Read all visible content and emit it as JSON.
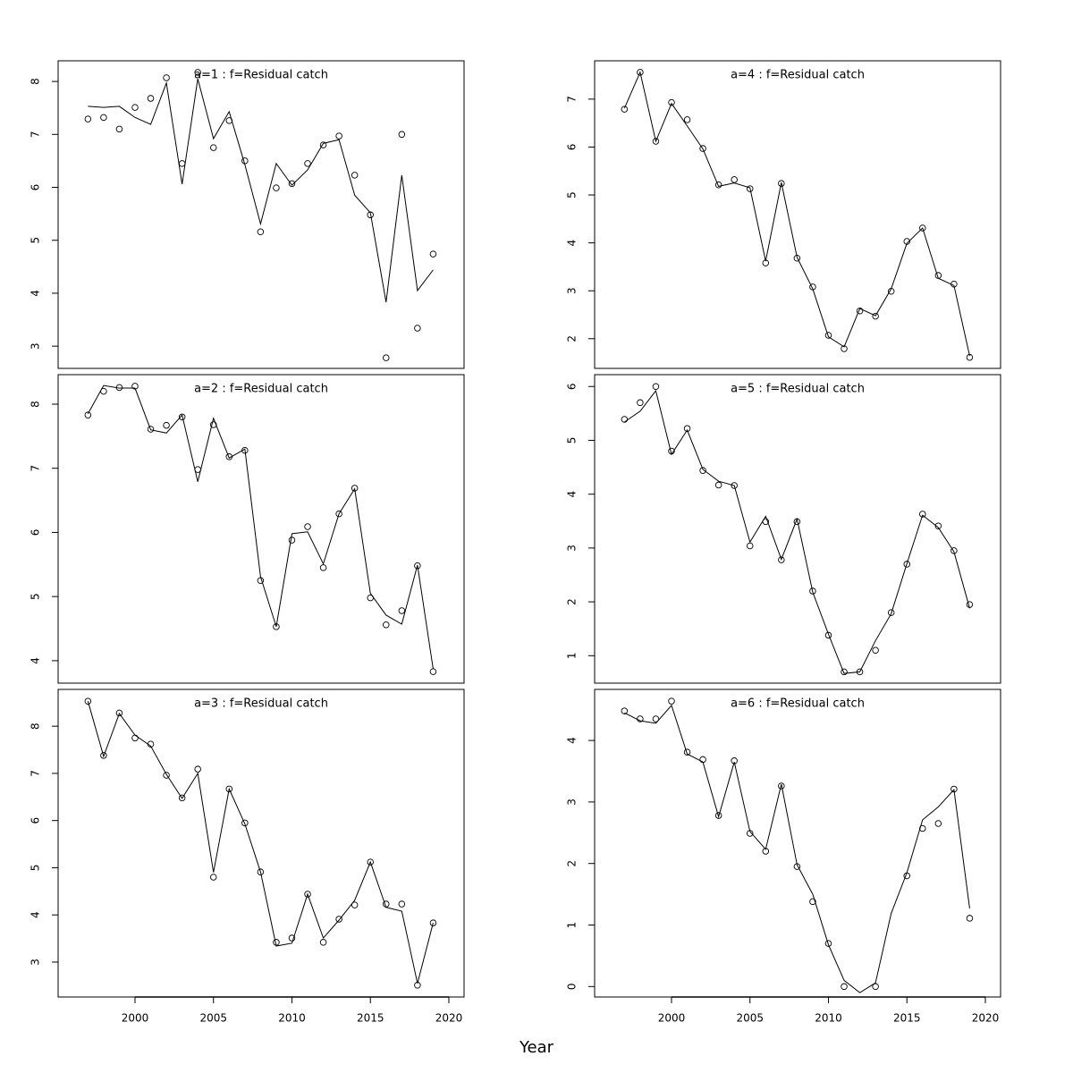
{
  "xlabel": "Year",
  "chart_data": [
    {
      "type": "line",
      "title": "a=1  :  f=Residual catch",
      "title_color": "#808080",
      "x": [
        1997,
        1998,
        1999,
        2000,
        2001,
        2002,
        2003,
        2004,
        2005,
        2006,
        2007,
        2008,
        2009,
        2010,
        2011,
        2012,
        2013,
        2014,
        2015,
        2016,
        2017,
        2018,
        2019
      ],
      "series": [
        {
          "style": "points",
          "color": "#000000",
          "values": [
            7.29,
            7.32,
            7.1,
            7.51,
            7.68,
            8.07,
            6.45,
            8.17,
            6.75,
            7.26,
            6.5,
            5.16,
            5.99,
            6.07,
            6.45,
            6.8,
            6.97,
            6.23,
            5.48,
            2.78,
            7.0,
            3.34,
            4.74
          ]
        },
        {
          "style": "line",
          "color": "#000000",
          "values": [
            7.53,
            7.51,
            7.53,
            7.32,
            7.19,
            7.97,
            6.06,
            8.05,
            6.92,
            7.43,
            6.43,
            5.31,
            6.45,
            6.04,
            6.33,
            6.83,
            6.9,
            5.85,
            5.52,
            3.83,
            6.23,
            4.05,
            4.44
          ]
        }
      ],
      "xlim": [
        1995.1,
        2020.97
      ],
      "ylim": [
        2.58,
        8.39
      ],
      "yticks": [
        3,
        4,
        5,
        6,
        7,
        8
      ]
    },
    {
      "type": "line",
      "title": "a=2  :  f=Residual catch",
      "title_color": "#808080",
      "x": [
        1997,
        1998,
        1999,
        2000,
        2001,
        2002,
        2003,
        2004,
        2005,
        2006,
        2007,
        2008,
        2009,
        2010,
        2011,
        2012,
        2013,
        2014,
        2015,
        2016,
        2017,
        2018,
        2019
      ],
      "series": [
        {
          "style": "points",
          "color": "#000000",
          "values": [
            7.83,
            8.2,
            8.26,
            8.28,
            7.61,
            7.67,
            7.8,
            6.98,
            7.68,
            7.18,
            7.28,
            5.25,
            4.53,
            5.88,
            6.09,
            5.45,
            6.29,
            6.69,
            4.98,
            4.56,
            4.78,
            5.48,
            3.83
          ]
        },
        {
          "style": "line",
          "color": "#000000",
          "values": [
            7.85,
            8.29,
            8.25,
            8.25,
            7.6,
            7.55,
            7.83,
            6.79,
            7.78,
            7.16,
            7.3,
            5.31,
            4.53,
            5.98,
            6.01,
            5.51,
            6.29,
            6.68,
            5.05,
            4.71,
            4.57,
            5.49,
            3.87
          ]
        }
      ],
      "xlim": [
        1995.1,
        2020.97
      ],
      "ylim": [
        3.65,
        8.46
      ],
      "yticks": [
        4,
        5,
        6,
        7,
        8
      ]
    },
    {
      "type": "line",
      "title": "a=3  :  f=Residual catch",
      "title_color": "#808080",
      "x": [
        1997,
        1998,
        1999,
        2000,
        2001,
        2002,
        2003,
        2004,
        2005,
        2006,
        2007,
        2008,
        2009,
        2010,
        2011,
        2012,
        2013,
        2014,
        2015,
        2016,
        2017,
        2018,
        2019
      ],
      "series": [
        {
          "style": "points",
          "color": "#000000",
          "values": [
            8.53,
            7.38,
            8.28,
            7.75,
            7.62,
            6.96,
            6.48,
            7.09,
            4.8,
            6.67,
            5.95,
            4.91,
            3.42,
            3.51,
            4.44,
            3.42,
            3.91,
            4.21,
            5.12,
            4.23,
            4.23,
            2.51,
            3.83
          ]
        },
        {
          "style": "line",
          "color": "#000000",
          "values": [
            8.53,
            7.36,
            8.27,
            7.81,
            7.58,
            6.98,
            6.47,
            7.0,
            4.9,
            6.67,
            5.93,
            4.91,
            3.34,
            3.4,
            4.44,
            3.51,
            3.89,
            4.31,
            5.12,
            4.16,
            4.08,
            2.55,
            3.83
          ]
        }
      ],
      "xlim": [
        1995.1,
        2020.97
      ],
      "ylim": [
        2.26,
        8.78
      ],
      "yticks": [
        3,
        4,
        5,
        6,
        7,
        8
      ],
      "xticks": [
        2000,
        2005,
        2010,
        2015,
        2020
      ]
    },
    {
      "type": "line",
      "title": "a=4  :  f=Residual catch",
      "title_color": "#808080",
      "x": [
        1997,
        1998,
        1999,
        2000,
        2001,
        2002,
        2003,
        2004,
        2005,
        2006,
        2007,
        2008,
        2009,
        2010,
        2011,
        2012,
        2013,
        2014,
        2015,
        2016,
        2017,
        2018,
        2019
      ],
      "series": [
        {
          "style": "points",
          "color": "#000000",
          "values": [
            6.79,
            7.56,
            6.12,
            6.93,
            6.57,
            5.97,
            5.21,
            5.32,
            5.13,
            3.58,
            5.24,
            3.68,
            3.08,
            2.07,
            1.79,
            2.58,
            2.47,
            2.99,
            4.03,
            4.31,
            3.32,
            3.14,
            1.61
          ]
        },
        {
          "style": "line",
          "color": "#000000",
          "values": [
            6.81,
            7.56,
            6.12,
            6.91,
            6.44,
            5.96,
            5.18,
            5.25,
            5.15,
            3.62,
            5.26,
            3.7,
            3.04,
            2.04,
            1.83,
            2.63,
            2.48,
            3.04,
            3.99,
            4.31,
            3.26,
            3.11,
            1.64
          ]
        }
      ],
      "xlim": [
        1995.1,
        2020.97
      ],
      "ylim": [
        1.38,
        7.8
      ],
      "yticks": [
        2,
        3,
        4,
        5,
        6,
        7
      ]
    },
    {
      "type": "line",
      "title": "a=5  :  f=Residual catch",
      "title_color": "#808080",
      "x": [
        1997,
        1998,
        1999,
        2000,
        2001,
        2002,
        2003,
        2004,
        2005,
        2006,
        2007,
        2008,
        2009,
        2010,
        2011,
        2012,
        2013,
        2014,
        2015,
        2016,
        2017,
        2018,
        2019
      ],
      "series": [
        {
          "style": "points",
          "color": "#000000",
          "values": [
            5.39,
            5.7,
            6.0,
            4.8,
            5.22,
            4.44,
            4.17,
            4.16,
            3.04,
            3.49,
            2.78,
            3.49,
            2.2,
            1.38,
            0.7,
            0.7,
            1.1,
            1.8,
            2.7,
            3.63,
            3.41,
            2.95,
            1.95
          ]
        },
        {
          "style": "line",
          "color": "#000000",
          "values": [
            5.34,
            5.54,
            5.92,
            4.74,
            5.19,
            4.46,
            4.24,
            4.16,
            3.11,
            3.59,
            2.79,
            3.54,
            2.18,
            1.4,
            0.67,
            0.7,
            1.28,
            1.78,
            2.71,
            3.61,
            3.38,
            2.93,
            1.88
          ]
        }
      ],
      "xlim": [
        1995.1,
        2020.97
      ],
      "ylim": [
        0.49,
        6.22
      ],
      "yticks": [
        1,
        2,
        3,
        4,
        5,
        6
      ]
    },
    {
      "type": "line",
      "title": "a=6  :  f=Residual catch",
      "title_color": "#808080",
      "x": [
        1997,
        1998,
        1999,
        2000,
        2001,
        2002,
        2003,
        2004,
        2005,
        2006,
        2007,
        2008,
        2009,
        2010,
        2011,
        2012,
        2013,
        2014,
        2015,
        2016,
        2017,
        2018,
        2019
      ],
      "series": [
        {
          "style": "points",
          "color": "#000000",
          "values": [
            4.48,
            4.35,
            4.35,
            4.64,
            3.81,
            3.69,
            2.78,
            3.67,
            2.49,
            2.2,
            3.26,
            1.95,
            1.38,
            0.7,
            0.0,
            null,
            0.0,
            null,
            1.8,
            2.57,
            2.65,
            3.21,
            1.11
          ]
        },
        {
          "style": "line",
          "color": "#000000",
          "values": [
            4.45,
            4.32,
            4.28,
            4.57,
            3.78,
            3.65,
            2.76,
            3.65,
            2.52,
            2.23,
            3.29,
            1.98,
            1.5,
            0.68,
            0.1,
            -0.1,
            0.06,
            1.19,
            1.85,
            2.71,
            2.92,
            3.2,
            1.27
          ]
        }
      ],
      "xlim": [
        1995.1,
        2020.97
      ],
      "ylim": [
        -0.17,
        4.83
      ],
      "yticks": [
        0,
        1,
        2,
        3,
        4
      ],
      "xticks": [
        2000,
        2005,
        2010,
        2015,
        2020
      ]
    }
  ]
}
